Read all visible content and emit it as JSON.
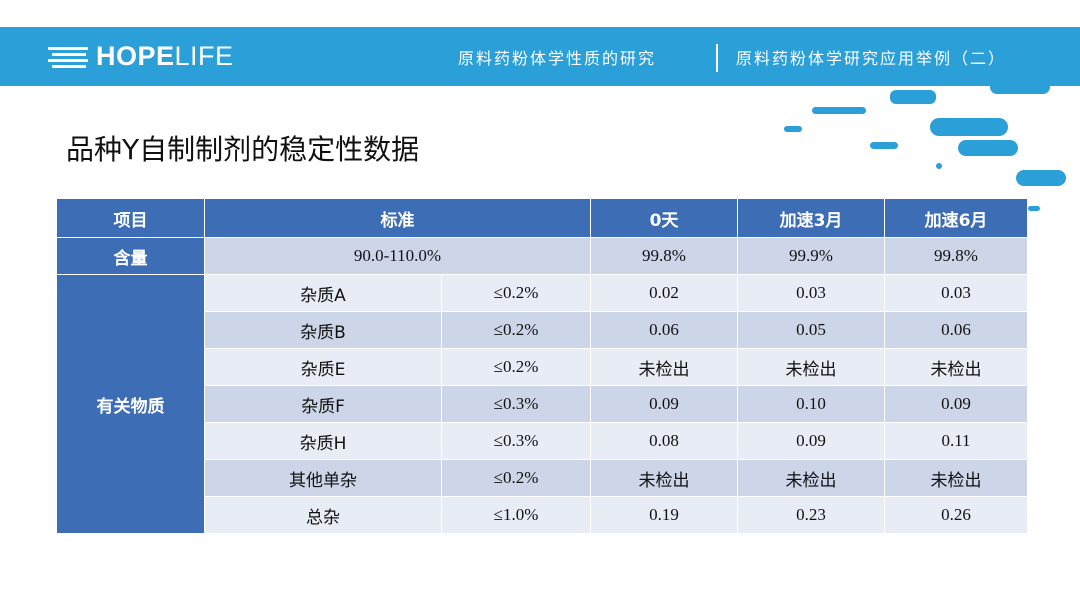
{
  "header": {
    "logo_bold": "HOPE",
    "logo_light": "LIFE",
    "breadcrumb_left": "原料药粉体学性质的研究",
    "breadcrumb_right": "原料药粉体学研究应用举例（二）"
  },
  "page": {
    "title": "品种Y自制制剂的稳定性数据"
  },
  "colors": {
    "banner": "#2a9fd8",
    "table_header": "#3d6eb5",
    "row_dark": "#cdd6e8",
    "row_light": "#e8ecf4"
  },
  "table": {
    "headers": {
      "item": "项目",
      "standard": "标准",
      "day0": "0天",
      "m3": "加速3月",
      "m6": "加速6月"
    },
    "content_row": {
      "label": "含量",
      "standard": "90.0-110.0%",
      "day0": "99.8%",
      "m3": "99.9%",
      "m6": "99.8%"
    },
    "related_label": "有关物质",
    "rows": [
      {
        "name": "杂质A",
        "limit": "≤0.2%",
        "day0": "0.02",
        "m3": "0.03",
        "m6": "0.03"
      },
      {
        "name": "杂质B",
        "limit": "≤0.2%",
        "day0": "0.06",
        "m3": "0.05",
        "m6": "0.06"
      },
      {
        "name": "杂质E",
        "limit": "≤0.2%",
        "day0": "未检出",
        "m3": "未检出",
        "m6": "未检出"
      },
      {
        "name": "杂质F",
        "limit": "≤0.3%",
        "day0": "0.09",
        "m3": "0.10",
        "m6": "0.09"
      },
      {
        "name": "杂质H",
        "limit": "≤0.3%",
        "day0": "0.08",
        "m3": "0.09",
        "m6": "0.11"
      },
      {
        "name": "其他单杂",
        "limit": "≤0.2%",
        "day0": "未检出",
        "m3": "未检出",
        "m6": "未检出"
      },
      {
        "name": "总杂",
        "limit": "≤1.0%",
        "day0": "0.19",
        "m3": "0.23",
        "m6": "0.26"
      }
    ]
  }
}
